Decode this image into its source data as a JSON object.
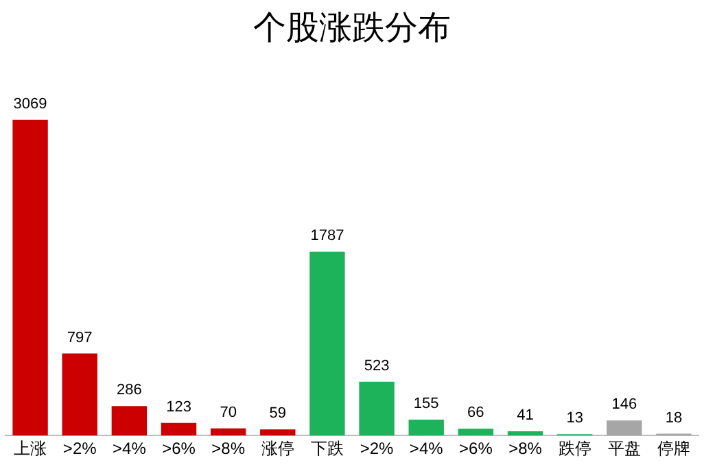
{
  "chart_data": {
    "type": "bar",
    "title": "个股涨跌分布",
    "categories": [
      "上涨",
      ">2%",
      ">4%",
      ">6%",
      ">8%",
      "涨停",
      "下跌",
      ">2%",
      ">4%",
      ">6%",
      ">8%",
      "跌停",
      "平盘",
      "停牌"
    ],
    "values": [
      3069,
      797,
      286,
      123,
      70,
      59,
      1787,
      523,
      155,
      66,
      41,
      13,
      146,
      18
    ],
    "colors": [
      "#cc0000",
      "#cc0000",
      "#cc0000",
      "#cc0000",
      "#cc0000",
      "#cc0000",
      "#1db35a",
      "#1db35a",
      "#1db35a",
      "#1db35a",
      "#1db35a",
      "#1db35a",
      "#a6a6a6",
      "#a6a6a6"
    ],
    "data_labels": true,
    "grid": false,
    "legend": false
  }
}
